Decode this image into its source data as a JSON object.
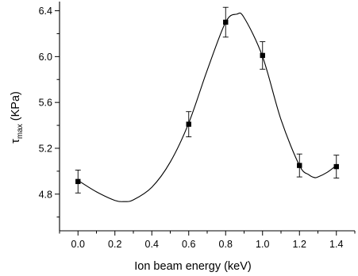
{
  "chart_data": {
    "type": "scatter",
    "title": "",
    "xlabel": "Ion beam energy (keV)",
    "ylabel_main": "τ",
    "ylabel_sub": "max",
    "ylabel_rest": " (KPa)",
    "xlim": [
      -0.1,
      1.5
    ],
    "ylim": [
      4.48,
      6.48
    ],
    "grid": false,
    "x_ticks": [
      0.0,
      0.2,
      0.4,
      0.6,
      0.8,
      1.0,
      1.2,
      1.4
    ],
    "x_tick_labels": [
      "0.0",
      "0.2",
      "0.4",
      "0.6",
      "0.8",
      "1.0",
      "1.2",
      "1.4"
    ],
    "x_minor_ticks": [
      -0.1,
      0.1,
      0.3,
      0.5,
      0.7,
      0.9,
      1.1,
      1.3,
      1.5
    ],
    "y_ticks": [
      4.8,
      5.2,
      5.6,
      6.0,
      6.4
    ],
    "y_tick_labels": [
      "4.8",
      "5.2",
      "5.6",
      "6.0",
      "6.4"
    ],
    "y_minor_ticks": [
      4.6,
      5.0,
      5.4,
      5.8,
      6.2
    ],
    "series": [
      {
        "marker": "square",
        "color": "#000000",
        "x": [
          0.0,
          0.6,
          0.8,
          1.0,
          1.2,
          1.4
        ],
        "y": [
          4.91,
          5.41,
          6.3,
          6.01,
          5.05,
          5.04
        ],
        "yerr": [
          0.1,
          0.11,
          0.13,
          0.12,
          0.1,
          0.1
        ]
      }
    ],
    "fit_curve": {
      "style": "smooth line",
      "color": "#000000",
      "x": [
        0.0,
        0.1,
        0.2,
        0.25,
        0.3,
        0.4,
        0.5,
        0.6,
        0.7,
        0.8,
        0.86,
        0.9,
        1.0,
        1.1,
        1.2,
        1.25,
        1.28,
        1.3,
        1.35,
        1.4
      ],
      "y": [
        4.92,
        4.82,
        4.745,
        4.735,
        4.75,
        4.86,
        5.08,
        5.42,
        5.88,
        6.3,
        6.37,
        6.34,
        6.0,
        5.45,
        5.05,
        4.97,
        4.945,
        4.95,
        4.99,
        5.05
      ]
    }
  }
}
